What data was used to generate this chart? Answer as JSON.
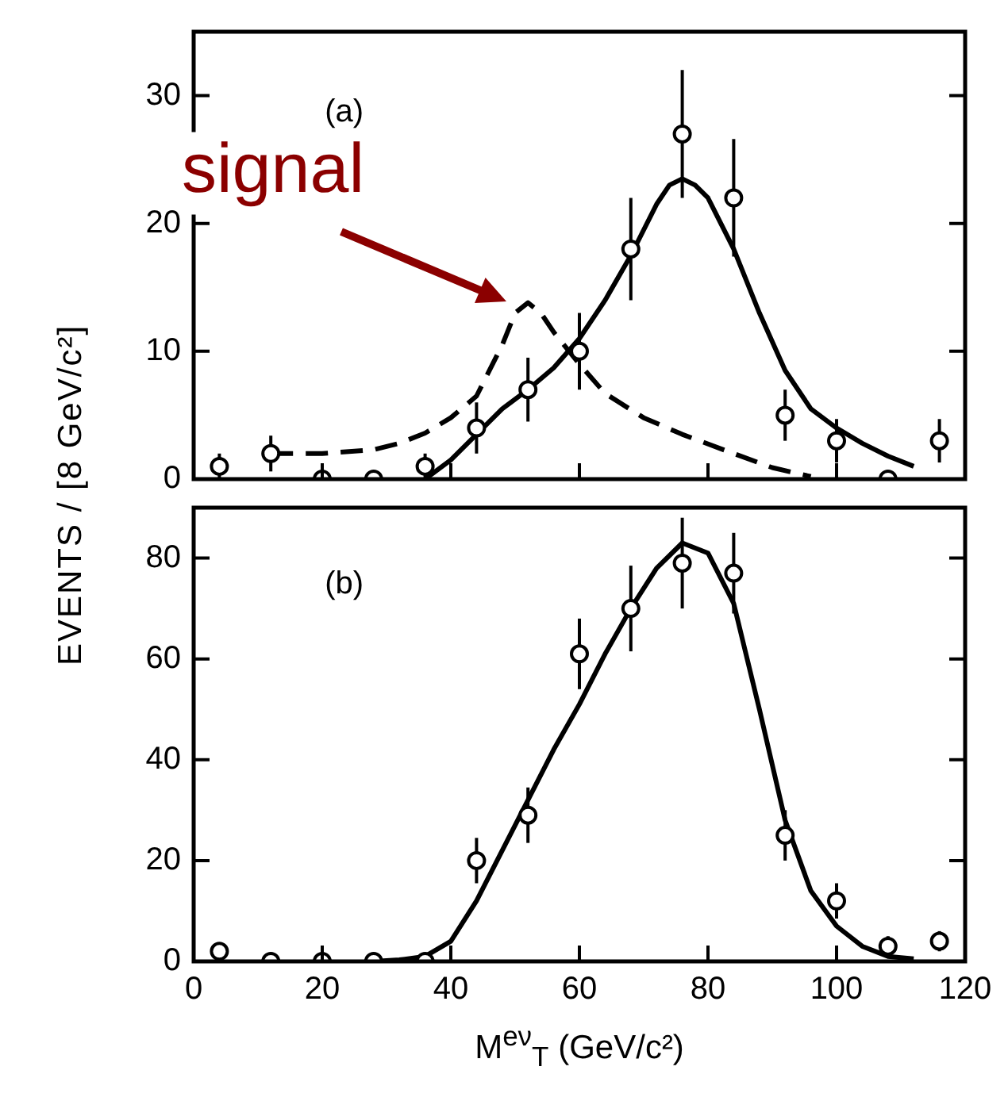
{
  "chart_data": [
    {
      "type": "scatter",
      "ylabel": "EVENTS / [8 GeV/c²]",
      "xlim": [
        0,
        120
      ],
      "xticks": [
        {
          "value": 0,
          "label": null
        },
        {
          "value": 20,
          "label": null
        },
        {
          "value": 40,
          "label": null
        },
        {
          "value": 60,
          "label": null
        },
        {
          "value": 80,
          "label": null
        },
        {
          "value": 100,
          "label": null
        },
        {
          "value": 120,
          "label": null
        }
      ],
      "ylim": [
        0,
        35
      ],
      "yticks": [
        0,
        10,
        20,
        30
      ],
      "tick_labels": "y",
      "grid": false,
      "legend": false,
      "annotations": [
        "(a)",
        {
          "text": "signal",
          "x": 50,
          "y": 13.5
        }
      ],
      "series": [
        {
          "type": "scatter",
          "marker": "circle",
          "color": "#000000",
          "x": [
            4,
            12,
            20,
            28,
            36,
            44,
            52,
            60,
            68,
            76,
            84,
            92,
            100,
            108,
            116
          ],
          "values": [
            1,
            2,
            0,
            0,
            1,
            4,
            7,
            10,
            18,
            27,
            22,
            5,
            3,
            0,
            3
          ],
          "errors": [
            1,
            1.4,
            null,
            null,
            1,
            2,
            2.5,
            3,
            4,
            5,
            4.6,
            2,
            1.7,
            null,
            1.7
          ]
        },
        {
          "type": "line",
          "marker": "none",
          "line_style": "solid",
          "color": "#000000",
          "x": [
            36,
            40,
            44,
            48,
            52,
            56,
            60,
            64,
            68,
            72,
            74,
            76,
            78,
            80,
            84,
            88,
            92,
            96,
            100,
            104,
            108,
            112
          ],
          "values": [
            0,
            1.5,
            3.5,
            5.5,
            7,
            8.7,
            11,
            14,
            17.5,
            21.5,
            23,
            23.5,
            23,
            22,
            18,
            13,
            8.5,
            5.5,
            4,
            2.8,
            1.8,
            1
          ]
        },
        {
          "type": "line",
          "marker": "none",
          "line_style": "dashed",
          "color": "#000000",
          "x": [
            12,
            20,
            28,
            32,
            36,
            40,
            44,
            48,
            50,
            52,
            54,
            56,
            60,
            64,
            70,
            76,
            84,
            90,
            96
          ],
          "values": [
            2,
            2,
            2.3,
            2.8,
            3.6,
            4.8,
            6.5,
            10.5,
            13,
            13.8,
            13,
            11.5,
            9,
            6.7,
            4.8,
            3.5,
            2,
            0.9,
            0.2
          ]
        }
      ]
    },
    {
      "type": "scatter",
      "xlabel": "M$^{eν}$$_{T}$ (GeV/c²)",
      "xlim": [
        0,
        120
      ],
      "xticks": [
        0,
        20,
        40,
        60,
        80,
        100,
        120
      ],
      "ylim": [
        0,
        90
      ],
      "yticks": [
        0,
        20,
        40,
        60,
        80
      ],
      "grid": false,
      "legend": false,
      "annotations": [
        "(b)"
      ],
      "series": [
        {
          "type": "scatter",
          "marker": "circle",
          "color": "#000000",
          "x": [
            4,
            12,
            20,
            28,
            36,
            44,
            52,
            60,
            68,
            76,
            84,
            92,
            100,
            108,
            116
          ],
          "values": [
            2,
            0,
            0,
            0,
            0,
            20,
            29,
            61,
            70,
            79,
            77,
            25,
            12,
            3,
            4
          ],
          "errors": [
            1.5,
            null,
            null,
            null,
            null,
            4.5,
            5.5,
            7,
            8.5,
            9,
            8,
            5,
            3.5,
            2,
            2
          ]
        },
        {
          "type": "line",
          "marker": "none",
          "line_style": "solid",
          "color": "#000000",
          "x": [
            28,
            32,
            36,
            40,
            44,
            48,
            52,
            56,
            60,
            64,
            68,
            72,
            76,
            80,
            84,
            88,
            92,
            96,
            100,
            104,
            108,
            112
          ],
          "values": [
            0,
            0.3,
            1,
            4,
            12,
            22,
            32,
            42,
            51,
            61,
            70,
            78,
            83,
            81,
            71,
            50,
            28,
            14,
            7,
            3,
            1,
            0.5
          ]
        }
      ]
    }
  ]
}
